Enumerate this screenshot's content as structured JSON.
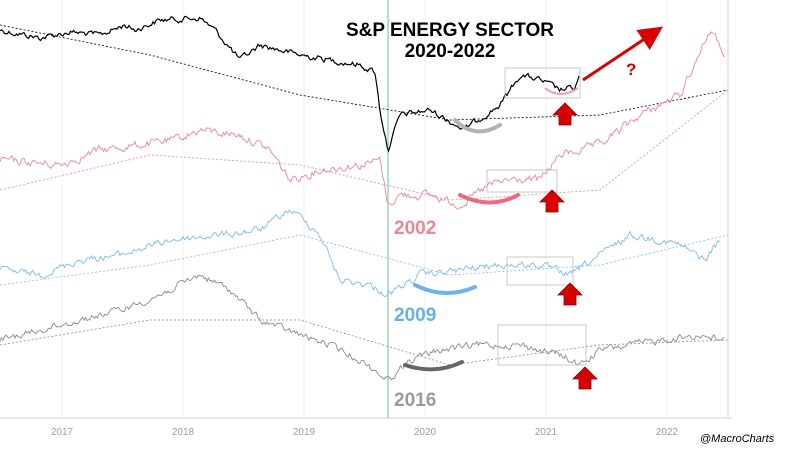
{
  "chart_data": {
    "type": "line",
    "title": "S&P ENERGY SECTOR",
    "subtitle": "2020-2022",
    "annotation": "?",
    "credit": "@MacroCharts",
    "x_ticks": [
      "2017",
      "2018",
      "2019",
      "2020",
      "2021",
      "2022"
    ],
    "series": [
      {
        "name": "2020-2022",
        "color": "#000000",
        "label": "",
        "moving_average": true,
        "curve_color": "#b3b3b3",
        "box": true,
        "up_arrow": true
      },
      {
        "name": "2002",
        "color": "#f08791",
        "label": "2002",
        "moving_average": true,
        "curve_color": "#ef6b7c",
        "box": true,
        "up_arrow": true
      },
      {
        "name": "2009",
        "color": "#7fbcf0",
        "label": "2009",
        "moving_average": true,
        "curve_color": "#6fb2ee",
        "box": true,
        "up_arrow": true
      },
      {
        "name": "2016",
        "color": "#8c8c8c",
        "label": "2016",
        "moving_average": true,
        "curve_color": "#666666",
        "box": true,
        "up_arrow": true
      }
    ],
    "marker": {
      "aligned_at": "2020",
      "color": "#9fd9b8"
    },
    "label_colors": {
      "2002": "#f08791",
      "2009": "#66b2f0",
      "2016": "#9a9a9a"
    }
  }
}
